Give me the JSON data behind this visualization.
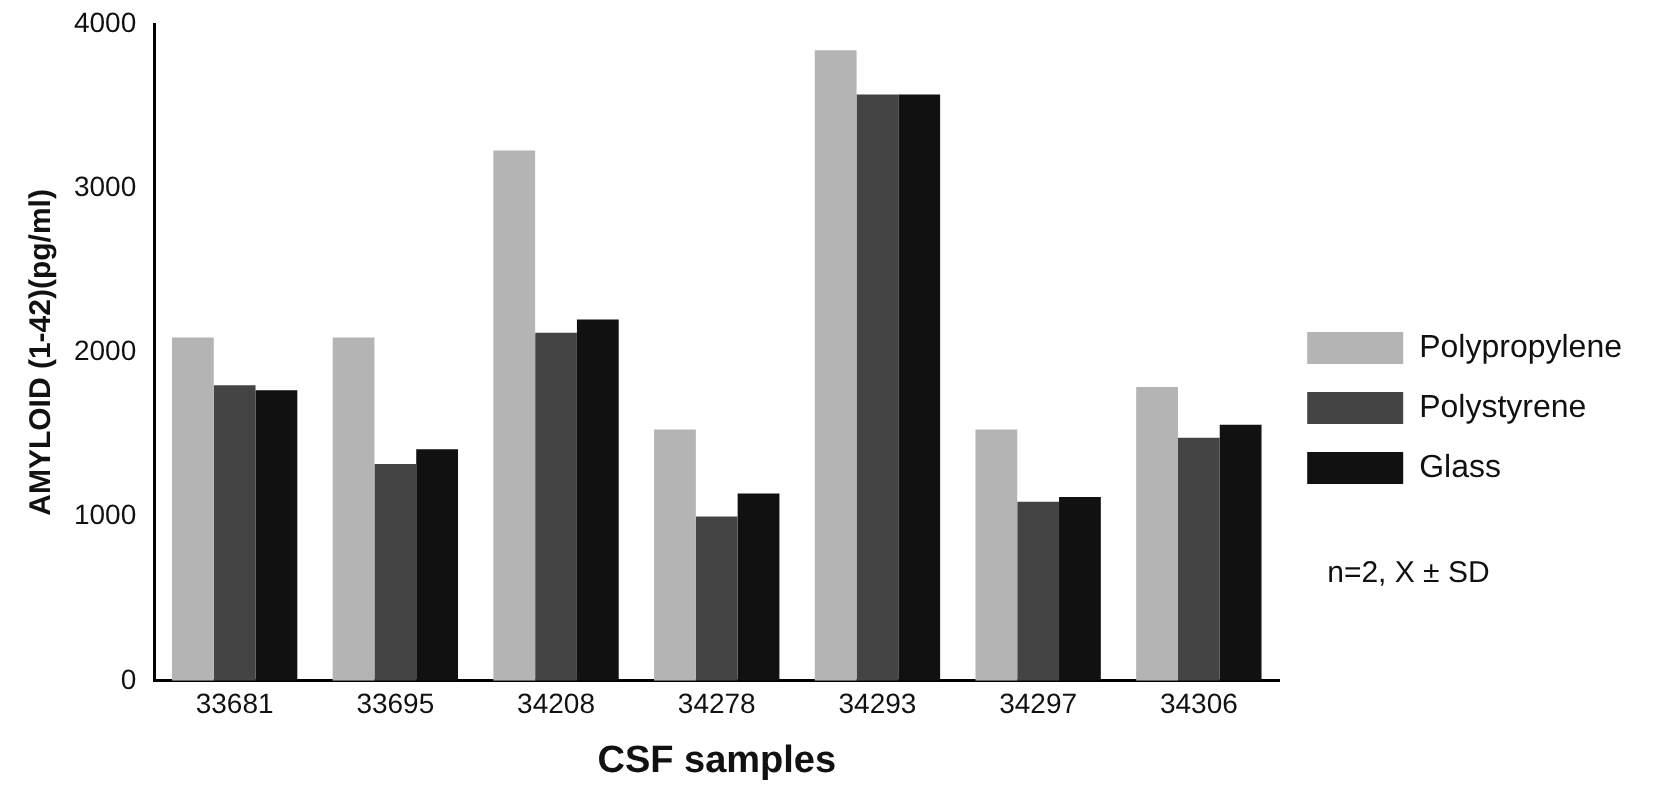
{
  "chart_data": {
    "type": "bar",
    "xlabel": "CSF samples",
    "ylabel": "AMYLOID (1-42)(pg/ml)",
    "categories": [
      "33681",
      "33695",
      "34208",
      "34278",
      "34293",
      "34297",
      "34306"
    ],
    "series": [
      {
        "name": "Polypropylene",
        "color": "#b4b4b4",
        "values": [
          2090,
          2090,
          3230,
          1530,
          3840,
          1530,
          1790
        ]
      },
      {
        "name": "Polystyrene",
        "color": "#444444",
        "values": [
          1800,
          1320,
          2120,
          1000,
          3570,
          1090,
          1480
        ]
      },
      {
        "name": "Glass",
        "color": "#111111",
        "values": [
          1770,
          1410,
          2200,
          1140,
          3570,
          1120,
          1560
        ]
      }
    ],
    "ylim": [
      0,
      4000
    ],
    "yticks": [
      0,
      1000,
      2000,
      3000,
      4000
    ],
    "grid": false,
    "legend": "right",
    "annotations": [
      "n=2, X ± SD"
    ]
  }
}
